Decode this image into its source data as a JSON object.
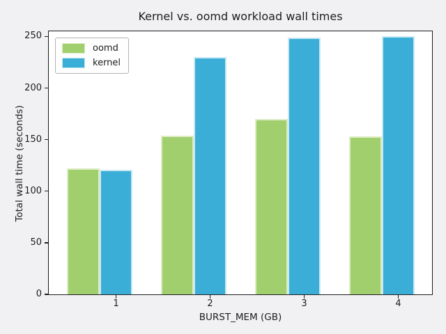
{
  "chart_data": {
    "type": "bar",
    "title": "Kernel vs. oomd workload wall times",
    "xlabel": "BURST_MEM (GB)",
    "ylabel": "Total wall time (seconds)",
    "categories": [
      "1",
      "2",
      "3",
      "4"
    ],
    "series": [
      {
        "name": "oomd",
        "color": "#a1cf6e",
        "edge_color": "#ddedc5",
        "values": [
          122,
          154,
          170,
          153
        ]
      },
      {
        "name": "kernel",
        "color": "#3aaed6",
        "edge_color": "#c9e8f4",
        "values": [
          121,
          230,
          249,
          250
        ]
      }
    ],
    "yticks": [
      0,
      50,
      100,
      150,
      200,
      250
    ],
    "ylim": [
      0,
      255
    ],
    "grid": false,
    "legend_position": "upper left",
    "colors": {
      "figure_background": "#f1f1f3",
      "plot_background": "#ffffff",
      "spine": "#1a1a1a",
      "text": "#1c1c1c"
    }
  }
}
